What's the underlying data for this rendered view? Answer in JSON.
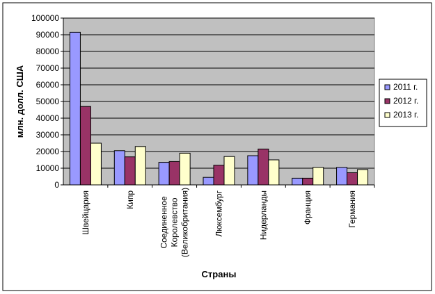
{
  "chart_data": {
    "type": "bar",
    "title": "",
    "xlabel": "Страны",
    "ylabel": "млн. долл. США",
    "ylim": [
      0,
      100000
    ],
    "yticks": [
      0,
      10000,
      20000,
      30000,
      40000,
      50000,
      60000,
      70000,
      80000,
      90000,
      100000
    ],
    "grid": true,
    "legend_position": "right",
    "plot_background": "#c0c0c0",
    "categories": [
      [
        "Швейцария"
      ],
      [
        "Кипр"
      ],
      [
        "Соединенное",
        "Королевство",
        "(Великобритания)"
      ],
      [
        "Люксембург"
      ],
      [
        "Нидерланды"
      ],
      [
        "Франция"
      ],
      [
        "Германия"
      ]
    ],
    "series": [
      {
        "name": "2011 г.",
        "color": "#9999ff",
        "values": [
          91500,
          20500,
          13500,
          4500,
          17500,
          4000,
          10500
        ]
      },
      {
        "name": "2012 г.",
        "color": "#993366",
        "values": [
          47000,
          16800,
          14000,
          11800,
          21500,
          4000,
          7300
        ]
      },
      {
        "name": "2013 г.",
        "color": "#ffffcc",
        "values": [
          25000,
          23000,
          19000,
          17000,
          15000,
          10500,
          9200
        ]
      }
    ]
  }
}
